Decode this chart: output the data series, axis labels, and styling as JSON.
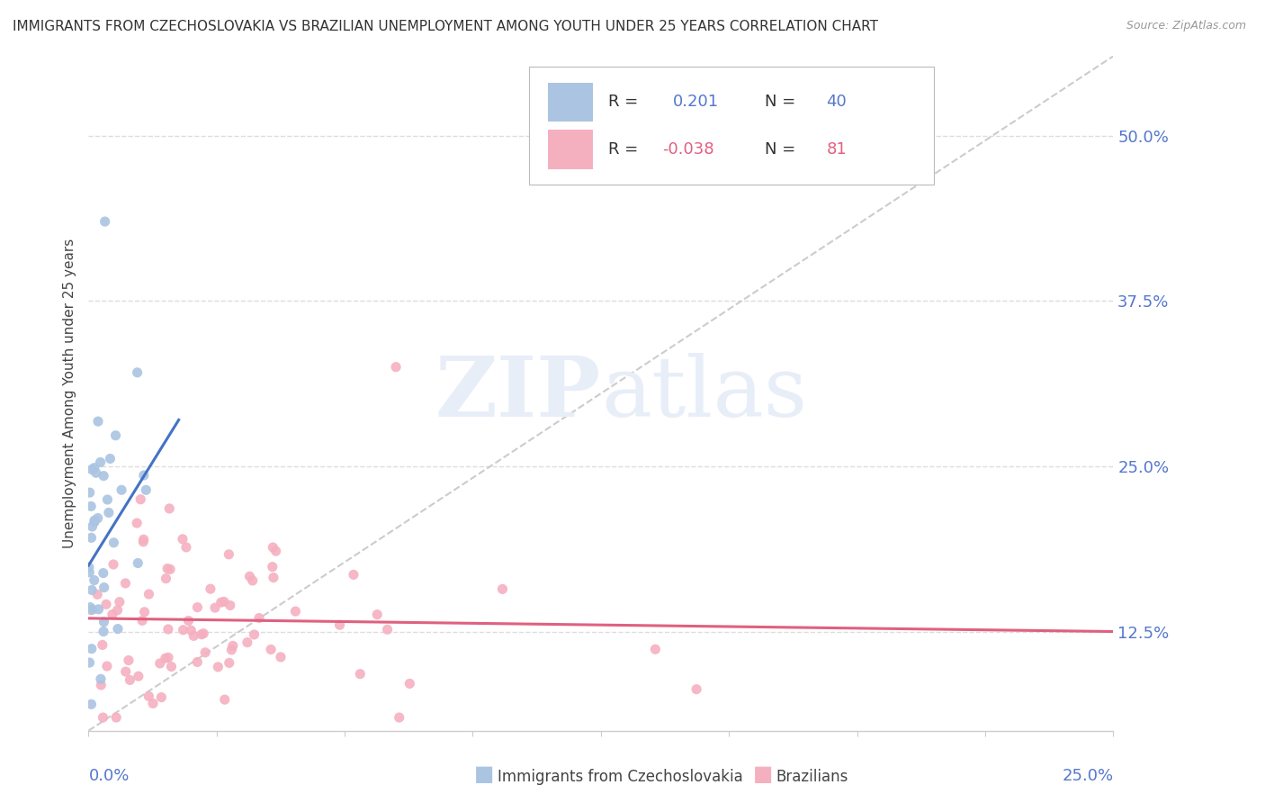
{
  "title": "IMMIGRANTS FROM CZECHOSLOVAKIA VS BRAZILIAN UNEMPLOYMENT AMONG YOUTH UNDER 25 YEARS CORRELATION CHART",
  "source": "Source: ZipAtlas.com",
  "ylabel": "Unemployment Among Youth under 25 years",
  "ytick_vals": [
    0.125,
    0.25,
    0.375,
    0.5
  ],
  "ytick_labels": [
    "12.5%",
    "25.0%",
    "37.5%",
    "50.0%"
  ],
  "xlim": [
    0.0,
    0.25
  ],
  "ylim": [
    0.05,
    0.56
  ],
  "blue_fill": "#aac4e2",
  "pink_fill": "#f5b0c0",
  "blue_line": "#4472c4",
  "pink_line": "#e06080",
  "axis_color": "#5577cc",
  "grid_color": "#dddddd",
  "watermark_color": "#e8eef8",
  "r_blue": "0.201",
  "n_blue": "40",
  "r_pink": "-0.038",
  "n_pink": "81",
  "title_fontsize": 11,
  "tick_fontsize": 13,
  "legend_fontsize": 13
}
